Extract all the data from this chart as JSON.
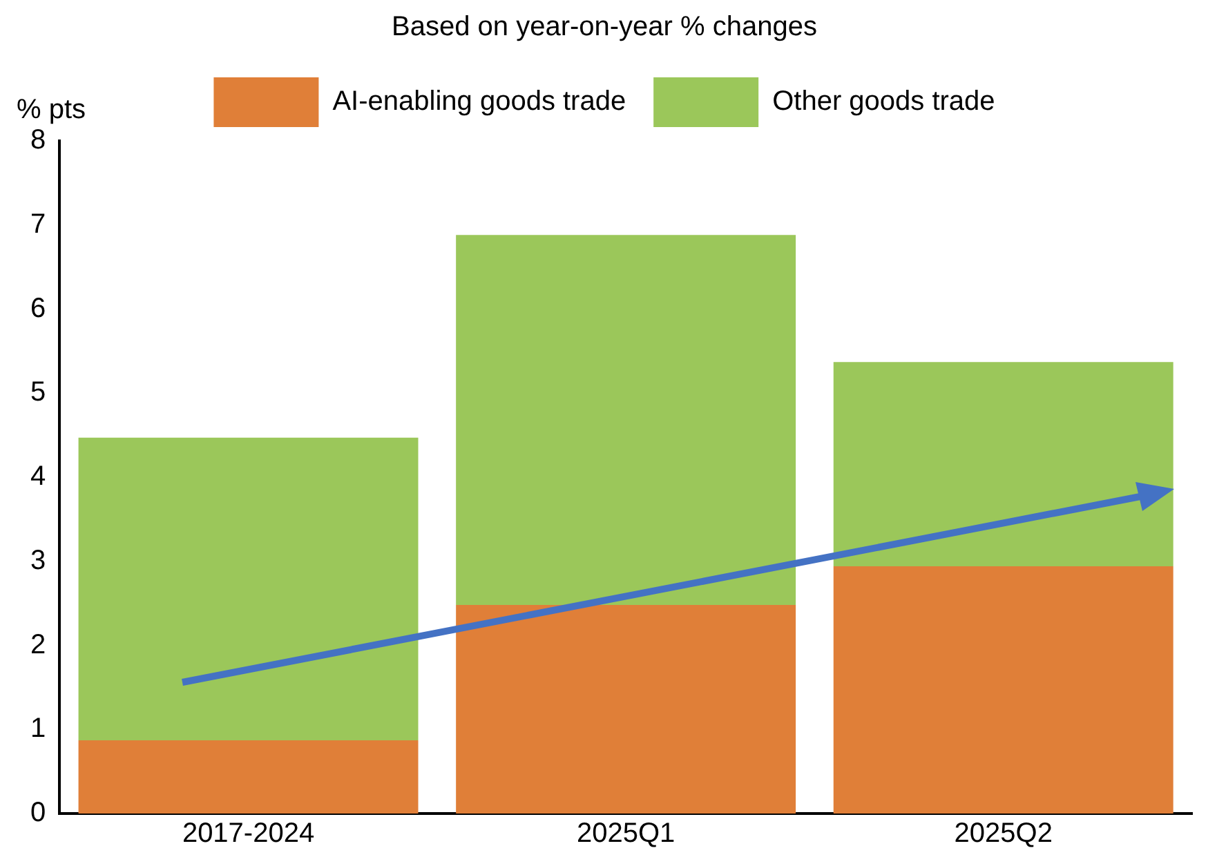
{
  "chart_data": {
    "type": "bar",
    "title": "Based on year-on-year % changes",
    "ylabel": "% pts",
    "categories": [
      "2017-2024",
      "2025Q1",
      "2025Q2"
    ],
    "stacked": true,
    "series": [
      {
        "name": "AI-enabling goods trade",
        "color": "#e07f38",
        "values": [
          0.87,
          2.48,
          2.94
        ]
      },
      {
        "name": "Other goods trade",
        "color": "#9bc75a",
        "values": [
          3.6,
          4.4,
          2.43
        ]
      }
    ],
    "ylim": [
      0,
      8
    ],
    "yticks": [
      0,
      1,
      2,
      3,
      4,
      5,
      6,
      7,
      8
    ],
    "grid": false,
    "legend": "top"
  }
}
